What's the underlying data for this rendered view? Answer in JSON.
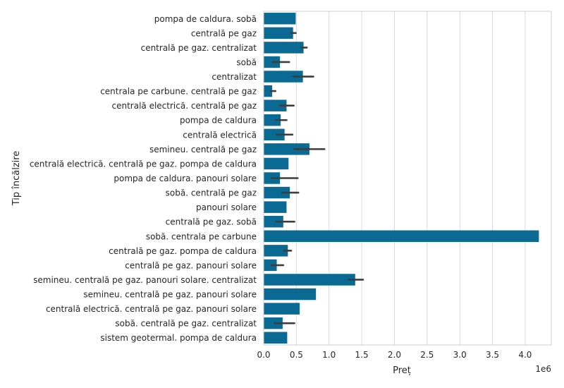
{
  "chart_data": {
    "type": "bar",
    "orientation": "horizontal",
    "xlabel": "Preț",
    "ylabel": "Tip încălzire",
    "x_offset_label": "1e6",
    "xlim": [
      0,
      4.4
    ],
    "xticks": [
      "0.0",
      "0.5",
      "1.0",
      "1.5",
      "2.0",
      "2.5",
      "3.0",
      "3.5",
      "4.0"
    ],
    "xtick_values": [
      0,
      0.5,
      1.0,
      1.5,
      2.0,
      2.5,
      3.0,
      3.5,
      4.0
    ],
    "grid": "vertical",
    "bar_color": "#0b6a94",
    "error_color": "#3d3d3d",
    "categories": [
      "pompa de caldura. sobă",
      "centrală pe gaz",
      "centrală pe gaz. centralizat",
      "sobă",
      "centralizat",
      "centrala pe carbune. centrală pe gaz",
      "centrală electrică. centrală pe gaz",
      "pompa de caldura",
      "centrală electrică",
      "semineu. centrală pe gaz",
      "centrală electrică. centrală pe gaz. pompa de caldura",
      "pompa de caldura. panouri solare",
      "sobă. centrală pe gaz",
      "panouri solare",
      "centrală pe gaz. sobă",
      "sobă. centrala pe carbune",
      "centrală pe gaz. pompa de caldura",
      "centrală pe gaz. panouri solare",
      "semineu. centrală pe gaz. panouri solare. centralizat",
      "semineu. centrală pe gaz. panouri solare",
      "centrală electrică. centrală pe gaz. panouri solare",
      "sobă. centrală pe gaz. centralizat",
      "sistem geotermal. pompa de caldura"
    ],
    "values": [
      0.49,
      0.45,
      0.61,
      0.25,
      0.6,
      0.13,
      0.35,
      0.26,
      0.32,
      0.7,
      0.38,
      0.25,
      0.4,
      0.35,
      0.3,
      4.21,
      0.37,
      0.2,
      1.4,
      0.8,
      0.55,
      0.29,
      0.36
    ],
    "errors": [
      null,
      [
        0.42,
        0.49
      ],
      [
        0.58,
        0.66
      ],
      [
        0.14,
        0.39
      ],
      [
        0.45,
        0.76
      ],
      [
        0.11,
        0.18
      ],
      [
        0.25,
        0.46
      ],
      [
        0.19,
        0.35
      ],
      [
        0.2,
        0.44
      ],
      [
        0.47,
        0.93
      ],
      null,
      [
        0.12,
        0.52
      ],
      [
        0.28,
        0.53
      ],
      null,
      [
        0.19,
        0.47
      ],
      null,
      [
        0.31,
        0.42
      ],
      [
        0.12,
        0.3
      ],
      [
        1.3,
        1.52
      ],
      null,
      null,
      [
        0.17,
        0.47
      ],
      null
    ]
  }
}
